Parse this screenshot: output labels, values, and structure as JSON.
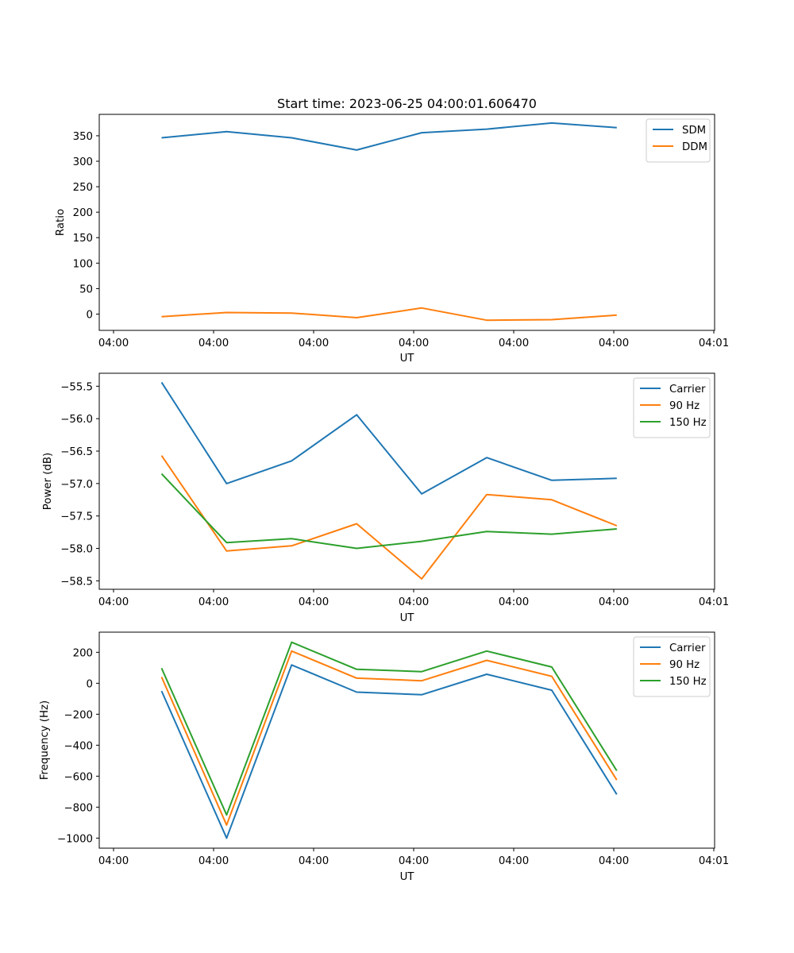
{
  "chart_data": [
    {
      "type": "line",
      "title": "Start time: 2023-06-25 04:00:01.606470",
      "xlabel": "UT",
      "ylabel": "Ratio",
      "x_tick_labels": [
        "04:00",
        "04:00",
        "04:00",
        "04:00",
        "04:00",
        "04:00",
        "04:01"
      ],
      "xlim": [
        0,
        6
      ],
      "x": [
        0.48,
        1.13,
        1.78,
        2.43,
        3.08,
        3.73,
        4.38,
        5.03
      ],
      "ylim": [
        -32,
        392
      ],
      "y_ticks": [
        0,
        50,
        100,
        150,
        200,
        250,
        300,
        350
      ],
      "legend_position": "top-right",
      "series": [
        {
          "name": "SDM",
          "color": "#1f77b4",
          "values": [
            346,
            358,
            346,
            322,
            356,
            363,
            375,
            366
          ]
        },
        {
          "name": "DDM",
          "color": "#ff7f0e",
          "values": [
            -5,
            3,
            2,
            -7,
            12,
            -12,
            -11,
            -2
          ]
        }
      ]
    },
    {
      "type": "line",
      "title": "",
      "xlabel": "UT",
      "ylabel": "Power (dB)",
      "x_tick_labels": [
        "04:00",
        "04:00",
        "04:00",
        "04:00",
        "04:00",
        "04:00",
        "04:01"
      ],
      "xlim": [
        0,
        6
      ],
      "x": [
        0.48,
        1.13,
        1.78,
        2.43,
        3.08,
        3.73,
        4.38,
        5.03
      ],
      "ylim": [
        -58.63,
        -55.3
      ],
      "y_ticks": [
        -58.5,
        -58.0,
        -57.5,
        -57.0,
        -56.5,
        -56.0,
        -55.5
      ],
      "y_tick_labels": [
        "−58.5",
        "−58.0",
        "−57.5",
        "−57.0",
        "−56.5",
        "−56.0",
        "−55.5"
      ],
      "legend_position": "top-right",
      "series": [
        {
          "name": "Carrier",
          "color": "#1f77b4",
          "values": [
            -55.44,
            -57.0,
            -56.65,
            -55.94,
            -57.16,
            -56.6,
            -56.95,
            -56.92
          ]
        },
        {
          "name": "90 Hz",
          "color": "#ff7f0e",
          "values": [
            -56.57,
            -58.04,
            -57.96,
            -57.62,
            -58.47,
            -57.17,
            -57.25,
            -57.65
          ]
        },
        {
          "name": "150 Hz",
          "color": "#2ca02c",
          "values": [
            -56.85,
            -57.91,
            -57.85,
            -58.0,
            -57.89,
            -57.74,
            -57.78,
            -57.7
          ]
        }
      ]
    },
    {
      "type": "line",
      "title": "",
      "xlabel": "UT",
      "ylabel": "Frequency (Hz)",
      "x_tick_labels": [
        "04:00",
        "04:00",
        "04:00",
        "04:00",
        "04:00",
        "04:00",
        "04:01"
      ],
      "xlim": [
        0,
        6
      ],
      "x": [
        0.48,
        1.13,
        1.78,
        2.43,
        3.08,
        3.73,
        4.38,
        5.03
      ],
      "ylim": [
        -1065,
        330
      ],
      "y_ticks": [
        -1000,
        -800,
        -600,
        -400,
        -200,
        0,
        200
      ],
      "y_tick_labels": [
        "−1000",
        "−800",
        "−600",
        "−400",
        "−200",
        "0",
        "200"
      ],
      "legend_position": "top-right",
      "series": [
        {
          "name": "Carrier",
          "color": "#1f77b4",
          "values": [
            -50,
            -1000,
            118,
            -57,
            -74,
            58,
            -45,
            -718
          ]
        },
        {
          "name": "90 Hz",
          "color": "#ff7f0e",
          "values": [
            40,
            -915,
            208,
            33,
            16,
            148,
            45,
            -625
          ]
        },
        {
          "name": "150 Hz",
          "color": "#2ca02c",
          "values": [
            97,
            -850,
            265,
            90,
            75,
            208,
            105,
            -565
          ]
        }
      ]
    }
  ]
}
